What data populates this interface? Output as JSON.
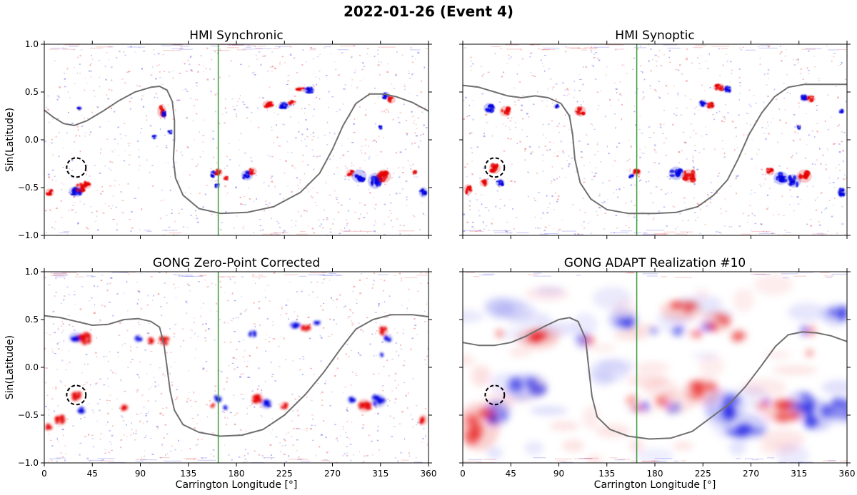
{
  "figure": {
    "title": "2022-01-26 (Event 4)"
  },
  "colors": {
    "positive": "#e60000",
    "negative": "#0000e0",
    "neutral_line": "#6f6f6f",
    "reference_line": "#3a9a3a",
    "marker": "#000000"
  },
  "chart_data": [
    {
      "type": "heatmap",
      "title": "HMI Synchronic",
      "xlabel": "",
      "ylabel": "Sin(Latitude)",
      "xlim": [
        0,
        360
      ],
      "ylim": [
        -1,
        1
      ],
      "xticks": [
        0,
        45,
        90,
        135,
        180,
        225,
        270,
        315,
        360
      ],
      "yticks": [
        -1.0,
        -0.5,
        0.0,
        0.5,
        1.0
      ],
      "ytick_labels": [
        "−1.0",
        "−0.5",
        "0.0",
        "0.5",
        "1.0"
      ],
      "xtick_labels_shown": false,
      "style": "sharp",
      "reference_longitude": 163,
      "marker": {
        "x": 30,
        "y": -0.29,
        "r_deg": 9
      },
      "neutral_line": [
        [
          0,
          0.31
        ],
        [
          8,
          0.24
        ],
        [
          18,
          0.17
        ],
        [
          28,
          0.15
        ],
        [
          40,
          0.2
        ],
        [
          55,
          0.3
        ],
        [
          70,
          0.41
        ],
        [
          85,
          0.5
        ],
        [
          100,
          0.55
        ],
        [
          108,
          0.56
        ],
        [
          115,
          0.52
        ],
        [
          120,
          0.4
        ],
        [
          122,
          0.2
        ],
        [
          122,
          0.0
        ],
        [
          121,
          -0.2
        ],
        [
          123,
          -0.4
        ],
        [
          130,
          -0.58
        ],
        [
          145,
          -0.72
        ],
        [
          165,
          -0.77
        ],
        [
          190,
          -0.76
        ],
        [
          215,
          -0.7
        ],
        [
          240,
          -0.55
        ],
        [
          258,
          -0.35
        ],
        [
          270,
          -0.1
        ],
        [
          280,
          0.15
        ],
        [
          292,
          0.38
        ],
        [
          305,
          0.48
        ],
        [
          318,
          0.48
        ],
        [
          330,
          0.45
        ],
        [
          345,
          0.39
        ],
        [
          360,
          0.3
        ]
      ],
      "blobs": [
        [
          30,
          -0.54,
          -1,
          5,
          0.04
        ],
        [
          34,
          -0.5,
          1,
          4,
          0.04
        ],
        [
          40,
          -0.47,
          1,
          3,
          0.03
        ],
        [
          110,
          0.3,
          1,
          3,
          0.05
        ],
        [
          112,
          0.27,
          -1,
          2,
          0.03
        ],
        [
          163,
          -0.34,
          1,
          3,
          0.03
        ],
        [
          158,
          -0.36,
          -1,
          2,
          0.03
        ],
        [
          162,
          -0.48,
          -1,
          2,
          0.02
        ],
        [
          170,
          -0.4,
          1,
          2,
          0.02
        ],
        [
          190,
          -0.37,
          -1,
          4,
          0.04
        ],
        [
          195,
          -0.33,
          1,
          3,
          0.03
        ],
        [
          210,
          0.37,
          1,
          4,
          0.03
        ],
        [
          225,
          0.36,
          -1,
          4,
          0.03
        ],
        [
          232,
          0.39,
          1,
          3,
          0.02
        ],
        [
          240,
          0.53,
          1,
          4,
          0.02
        ],
        [
          248,
          0.52,
          -1,
          4,
          0.03
        ],
        [
          287,
          -0.35,
          1,
          3,
          0.03
        ],
        [
          295,
          -0.38,
          -1,
          5,
          0.05
        ],
        [
          310,
          -0.43,
          -1,
          5,
          0.06
        ],
        [
          318,
          -0.38,
          1,
          5,
          0.05
        ],
        [
          320,
          0.46,
          -1,
          3,
          0.03
        ],
        [
          325,
          0.42,
          1,
          3,
          0.03
        ],
        [
          347,
          -0.34,
          1,
          2,
          0.02
        ],
        [
          355,
          -0.55,
          -1,
          3,
          0.04
        ],
        [
          315,
          0.13,
          -1,
          1.5,
          0.02
        ],
        [
          5,
          -0.55,
          1,
          3,
          0.03
        ],
        [
          33,
          0.33,
          -1,
          2,
          0.02
        ],
        [
          103,
          0.03,
          -1,
          2,
          0.02
        ],
        [
          118,
          0.08,
          -1,
          2,
          0.02
        ]
      ]
    },
    {
      "type": "heatmap",
      "title": "HMI Synoptic",
      "xlabel": "",
      "ylabel": "",
      "xlim": [
        0,
        360
      ],
      "ylim": [
        -1,
        1
      ],
      "xticks": [
        0,
        45,
        90,
        135,
        180,
        225,
        270,
        315,
        360
      ],
      "yticks": [
        -1.0,
        -0.5,
        0.0,
        0.5,
        1.0
      ],
      "ytick_labels": [],
      "xtick_labels_shown": false,
      "style": "sharp",
      "reference_longitude": 163,
      "marker": {
        "x": 30,
        "y": -0.29,
        "r_deg": 9
      },
      "neutral_line": [
        [
          0,
          0.57
        ],
        [
          15,
          0.55
        ],
        [
          30,
          0.5
        ],
        [
          42,
          0.46
        ],
        [
          55,
          0.44
        ],
        [
          68,
          0.46
        ],
        [
          80,
          0.44
        ],
        [
          92,
          0.38
        ],
        [
          100,
          0.25
        ],
        [
          103,
          0.05
        ],
        [
          105,
          -0.2
        ],
        [
          110,
          -0.45
        ],
        [
          120,
          -0.62
        ],
        [
          135,
          -0.73
        ],
        [
          155,
          -0.77
        ],
        [
          180,
          -0.77
        ],
        [
          200,
          -0.76
        ],
        [
          220,
          -0.7
        ],
        [
          235,
          -0.58
        ],
        [
          248,
          -0.42
        ],
        [
          258,
          -0.2
        ],
        [
          268,
          0.05
        ],
        [
          280,
          0.28
        ],
        [
          292,
          0.45
        ],
        [
          305,
          0.55
        ],
        [
          320,
          0.58
        ],
        [
          340,
          0.58
        ],
        [
          360,
          0.58
        ]
      ],
      "blobs": [
        [
          25,
          0.33,
          -1,
          4,
          0.04
        ],
        [
          40,
          0.3,
          1,
          4,
          0.04
        ],
        [
          30,
          -0.3,
          1,
          4,
          0.04
        ],
        [
          35,
          -0.45,
          -1,
          3,
          0.03
        ],
        [
          20,
          -0.45,
          1,
          3,
          0.03
        ],
        [
          88,
          0.35,
          -1,
          2,
          0.02
        ],
        [
          110,
          0.3,
          1,
          4,
          0.04
        ],
        [
          163,
          -0.34,
          1,
          3,
          0.03
        ],
        [
          158,
          -0.38,
          -1,
          2,
          0.02
        ],
        [
          200,
          -0.35,
          -1,
          5,
          0.05
        ],
        [
          212,
          -0.38,
          1,
          5,
          0.05
        ],
        [
          225,
          0.38,
          -1,
          3,
          0.03
        ],
        [
          232,
          0.36,
          1,
          3,
          0.03
        ],
        [
          240,
          0.55,
          1,
          4,
          0.03
        ],
        [
          248,
          0.53,
          -1,
          3,
          0.03
        ],
        [
          288,
          -0.33,
          1,
          3,
          0.03
        ],
        [
          298,
          -0.4,
          -1,
          5,
          0.05
        ],
        [
          310,
          -0.43,
          -1,
          5,
          0.05
        ],
        [
          320,
          -0.38,
          1,
          5,
          0.05
        ],
        [
          320,
          0.44,
          -1,
          3,
          0.03
        ],
        [
          326,
          0.43,
          1,
          3,
          0.03
        ],
        [
          355,
          -0.55,
          -1,
          3,
          0.04
        ],
        [
          315,
          0.13,
          -1,
          1.5,
          0.02
        ],
        [
          355,
          0.3,
          -1,
          2,
          0.02
        ],
        [
          5,
          -0.52,
          1,
          3,
          0.04
        ]
      ]
    },
    {
      "type": "heatmap",
      "title": "GONG Zero-Point Corrected",
      "xlabel": "Carrington Longitude [°]",
      "ylabel": "Sin(Latitude)",
      "xlim": [
        0,
        360
      ],
      "ylim": [
        -1,
        1
      ],
      "xticks": [
        0,
        45,
        90,
        135,
        180,
        225,
        270,
        315,
        360
      ],
      "yticks": [
        -1.0,
        -0.5,
        0.0,
        0.5,
        1.0
      ],
      "ytick_labels": [
        "−1.0",
        "−0.5",
        "0.0",
        "0.5",
        "1.0"
      ],
      "xtick_labels_shown": true,
      "style": "medium",
      "reference_longitude": 163,
      "marker": {
        "x": 30,
        "y": -0.29,
        "r_deg": 9
      },
      "neutral_line": [
        [
          0,
          0.54
        ],
        [
          15,
          0.52
        ],
        [
          30,
          0.48
        ],
        [
          45,
          0.44
        ],
        [
          60,
          0.45
        ],
        [
          75,
          0.5
        ],
        [
          88,
          0.51
        ],
        [
          100,
          0.48
        ],
        [
          108,
          0.42
        ],
        [
          112,
          0.25
        ],
        [
          115,
          0.0
        ],
        [
          118,
          -0.25
        ],
        [
          122,
          -0.45
        ],
        [
          130,
          -0.6
        ],
        [
          145,
          -0.68
        ],
        [
          165,
          -0.72
        ],
        [
          185,
          -0.71
        ],
        [
          205,
          -0.65
        ],
        [
          225,
          -0.5
        ],
        [
          245,
          -0.28
        ],
        [
          262,
          -0.05
        ],
        [
          278,
          0.2
        ],
        [
          292,
          0.4
        ],
        [
          308,
          0.5
        ],
        [
          325,
          0.55
        ],
        [
          345,
          0.55
        ],
        [
          360,
          0.53
        ]
      ],
      "blobs": [
        [
          30,
          0.31,
          -1,
          5,
          0.04
        ],
        [
          38,
          0.3,
          1,
          5,
          0.05
        ],
        [
          30,
          -0.3,
          1,
          4,
          0.04
        ],
        [
          35,
          -0.45,
          -1,
          3,
          0.03
        ],
        [
          15,
          -0.55,
          1,
          4,
          0.04
        ],
        [
          88,
          0.3,
          -1,
          3,
          0.03
        ],
        [
          100,
          0.28,
          1,
          3,
          0.03
        ],
        [
          112,
          0.28,
          1,
          4,
          0.04
        ],
        [
          163,
          -0.33,
          -1,
          3,
          0.03
        ],
        [
          158,
          -0.4,
          1,
          2,
          0.02
        ],
        [
          170,
          -0.42,
          -1,
          2,
          0.02
        ],
        [
          200,
          -0.33,
          1,
          4,
          0.04
        ],
        [
          208,
          -0.38,
          -1,
          4,
          0.04
        ],
        [
          225,
          -0.4,
          1,
          3,
          0.03
        ],
        [
          235,
          0.44,
          -1,
          4,
          0.03
        ],
        [
          245,
          0.41,
          1,
          4,
          0.03
        ],
        [
          255,
          0.46,
          -1,
          3,
          0.02
        ],
        [
          288,
          -0.34,
          -1,
          3,
          0.03
        ],
        [
          300,
          -0.4,
          1,
          5,
          0.05
        ],
        [
          313,
          -0.35,
          -1,
          5,
          0.05
        ],
        [
          318,
          0.38,
          1,
          3,
          0.04
        ],
        [
          322,
          0.3,
          -1,
          3,
          0.03
        ],
        [
          355,
          -0.55,
          1,
          3,
          0.04
        ],
        [
          316,
          0.13,
          -1,
          1.5,
          0.02
        ],
        [
          195,
          0.35,
          -1,
          3,
          0.03
        ],
        [
          75,
          -0.42,
          1,
          3,
          0.03
        ],
        [
          4,
          -0.62,
          1,
          3,
          0.03
        ]
      ]
    },
    {
      "type": "heatmap",
      "title": "GONG ADAPT Realization #10",
      "xlabel": "Carrington Longitude [°]",
      "ylabel": "",
      "xlim": [
        0,
        360
      ],
      "ylim": [
        -1,
        1
      ],
      "xticks": [
        0,
        45,
        90,
        135,
        180,
        225,
        270,
        315,
        360
      ],
      "yticks": [
        -1.0,
        -0.5,
        0.0,
        0.5,
        1.0
      ],
      "ytick_labels": [],
      "xtick_labels_shown": true,
      "style": "smooth",
      "reference_longitude": 163,
      "marker": {
        "x": 30,
        "y": -0.29,
        "r_deg": 9
      },
      "neutral_line": [
        [
          0,
          0.26
        ],
        [
          15,
          0.23
        ],
        [
          30,
          0.23
        ],
        [
          45,
          0.26
        ],
        [
          60,
          0.33
        ],
        [
          75,
          0.42
        ],
        [
          90,
          0.5
        ],
        [
          100,
          0.52
        ],
        [
          108,
          0.48
        ],
        [
          115,
          0.3
        ],
        [
          118,
          0.0
        ],
        [
          121,
          -0.3
        ],
        [
          126,
          -0.52
        ],
        [
          138,
          -0.65
        ],
        [
          155,
          -0.72
        ],
        [
          175,
          -0.75
        ],
        [
          195,
          -0.74
        ],
        [
          215,
          -0.67
        ],
        [
          232,
          -0.53
        ],
        [
          250,
          -0.38
        ],
        [
          265,
          -0.2
        ],
        [
          280,
          0.02
        ],
        [
          293,
          0.22
        ],
        [
          305,
          0.34
        ],
        [
          318,
          0.37
        ],
        [
          332,
          0.36
        ],
        [
          345,
          0.33
        ],
        [
          360,
          0.27
        ]
      ],
      "blobs": [
        [
          32,
          -0.48,
          -1,
          8,
          0.1
        ],
        [
          15,
          -0.62,
          1,
          14,
          0.18
        ],
        [
          35,
          0.35,
          1,
          3,
          0.03
        ],
        [
          112,
          0.28,
          -1,
          5,
          0.06
        ],
        [
          118,
          0.27,
          1,
          4,
          0.05
        ],
        [
          158,
          -0.35,
          1,
          4,
          0.04
        ],
        [
          163,
          -0.42,
          1,
          3,
          0.03
        ],
        [
          170,
          -0.4,
          -1,
          3,
          0.04
        ],
        [
          188,
          -0.35,
          1,
          5,
          0.05
        ],
        [
          198,
          -0.42,
          -1,
          5,
          0.05
        ],
        [
          178,
          0.38,
          -1,
          3,
          0.03
        ],
        [
          202,
          0.38,
          -1,
          5,
          0.04
        ],
        [
          218,
          0.35,
          1,
          5,
          0.04
        ],
        [
          238,
          0.48,
          1,
          10,
          0.08
        ],
        [
          228,
          0.43,
          -1,
          5,
          0.04
        ],
        [
          258,
          0.33,
          1,
          6,
          0.05
        ],
        [
          285,
          -0.35,
          -1,
          3,
          0.03
        ],
        [
          280,
          -0.4,
          1,
          4,
          0.04
        ],
        [
          300,
          -0.45,
          1,
          14,
          0.1
        ],
        [
          318,
          -0.38,
          -1,
          10,
          0.1
        ],
        [
          332,
          -0.5,
          -1,
          12,
          0.12
        ],
        [
          245,
          -0.4,
          -1,
          14,
          0.12
        ],
        [
          320,
          0.38,
          -1,
          4,
          0.04
        ],
        [
          326,
          0.38,
          1,
          4,
          0.04
        ],
        [
          325,
          0.15,
          1,
          3,
          0.03
        ],
        [
          265,
          -0.62,
          -1,
          15,
          0.1
        ],
        [
          355,
          -0.45,
          -1,
          8,
          0.1
        ],
        [
          350,
          0.55,
          -1,
          10,
          0.08
        ],
        [
          205,
          0.6,
          1,
          14,
          0.08
        ],
        [
          70,
          0.3,
          1,
          14,
          0.08
        ],
        [
          60,
          -0.2,
          -1,
          14,
          0.1
        ],
        [
          150,
          0.5,
          -1,
          10,
          0.08
        ],
        [
          225,
          -0.25,
          1,
          12,
          0.1
        ]
      ]
    }
  ]
}
